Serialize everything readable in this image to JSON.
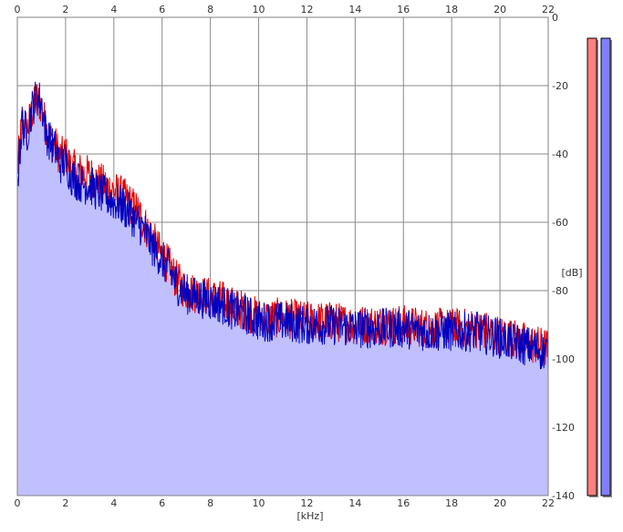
{
  "chart_data": {
    "type": "area",
    "xlabel": "[kHz]",
    "ylabel": "[dB]",
    "xlim": [
      0,
      22
    ],
    "ylim": [
      -140,
      0
    ],
    "x_ticks": [
      0,
      2,
      4,
      6,
      8,
      10,
      12,
      14,
      16,
      18,
      20,
      22
    ],
    "y_ticks": [
      0,
      -20,
      -40,
      -60,
      -80,
      -100,
      -120,
      -140
    ],
    "grid": true,
    "series": [
      {
        "color": "#e00000",
        "fill": "none",
        "points": [
          [
            0,
            -45
          ],
          [
            0.2,
            -30
          ],
          [
            0.4,
            -33
          ],
          [
            0.6,
            -28
          ],
          [
            0.8,
            -24
          ],
          [
            1.0,
            -26
          ],
          [
            1.2,
            -33
          ],
          [
            1.4,
            -36
          ],
          [
            1.6,
            -38
          ],
          [
            1.8,
            -41
          ],
          [
            2.0,
            -40
          ],
          [
            2.2,
            -44
          ],
          [
            2.5,
            -45
          ],
          [
            2.8,
            -46
          ],
          [
            3.0,
            -46
          ],
          [
            3.3,
            -48
          ],
          [
            3.6,
            -49
          ],
          [
            4.0,
            -51
          ],
          [
            4.3,
            -52
          ],
          [
            4.6,
            -54
          ],
          [
            5.0,
            -57
          ],
          [
            5.3,
            -61
          ],
          [
            5.6,
            -65
          ],
          [
            6.0,
            -70
          ],
          [
            6.3,
            -73
          ],
          [
            6.6,
            -77
          ],
          [
            7.0,
            -80
          ],
          [
            7.5,
            -81
          ],
          [
            8.0,
            -82
          ],
          [
            8.5,
            -83
          ],
          [
            9.0,
            -85
          ],
          [
            9.5,
            -86
          ],
          [
            10.0,
            -88
          ],
          [
            11.0,
            -88
          ],
          [
            12.0,
            -89
          ],
          [
            13.0,
            -89
          ],
          [
            14.0,
            -90
          ],
          [
            15.0,
            -90
          ],
          [
            16.0,
            -90
          ],
          [
            17.0,
            -91
          ],
          [
            18.0,
            -91
          ],
          [
            19.0,
            -91
          ],
          [
            20.0,
            -93
          ],
          [
            21.0,
            -95
          ],
          [
            22.0,
            -97
          ]
        ]
      },
      {
        "color": "#0000c0",
        "fill": "#c0c0ff",
        "points": [
          [
            0,
            -48
          ],
          [
            0.2,
            -31
          ],
          [
            0.4,
            -34
          ],
          [
            0.6,
            -27
          ],
          [
            0.8,
            -23
          ],
          [
            1.0,
            -25
          ],
          [
            1.2,
            -34
          ],
          [
            1.4,
            -37
          ],
          [
            1.6,
            -39
          ],
          [
            1.8,
            -43
          ],
          [
            2.0,
            -42
          ],
          [
            2.2,
            -46
          ],
          [
            2.5,
            -48
          ],
          [
            2.8,
            -49
          ],
          [
            3.0,
            -49
          ],
          [
            3.3,
            -51
          ],
          [
            3.6,
            -52
          ],
          [
            4.0,
            -54
          ],
          [
            4.3,
            -55
          ],
          [
            4.6,
            -57
          ],
          [
            5.0,
            -60
          ],
          [
            5.3,
            -63
          ],
          [
            5.6,
            -67
          ],
          [
            6.0,
            -71
          ],
          [
            6.3,
            -74
          ],
          [
            6.6,
            -78
          ],
          [
            7.0,
            -81
          ],
          [
            7.5,
            -82
          ],
          [
            8.0,
            -83
          ],
          [
            8.5,
            -84
          ],
          [
            9.0,
            -86
          ],
          [
            9.5,
            -87
          ],
          [
            10.0,
            -89
          ],
          [
            11.0,
            -89
          ],
          [
            12.0,
            -90
          ],
          [
            13.0,
            -90
          ],
          [
            14.0,
            -91
          ],
          [
            15.0,
            -91
          ],
          [
            16.0,
            -91
          ],
          [
            17.0,
            -92
          ],
          [
            18.0,
            -92
          ],
          [
            19.0,
            -92
          ],
          [
            20.0,
            -94
          ],
          [
            21.0,
            -96
          ],
          [
            22.0,
            -98
          ]
        ]
      }
    ],
    "level_meters": [
      {
        "color": "#ff8080",
        "level": 1.0
      },
      {
        "color": "#8080ff",
        "level": 1.0
      }
    ]
  }
}
